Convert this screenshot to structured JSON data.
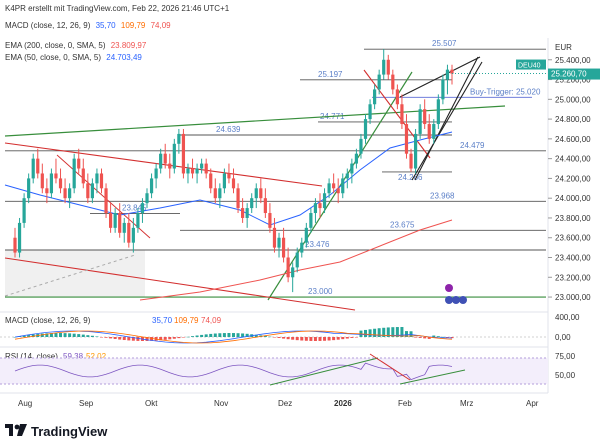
{
  "header": {
    "published_by": "K4PR erstellt mit TradingView.com, Feb 22, 2026 21:46 UTC+1"
  },
  "legends": {
    "macd_top": {
      "label": "MACD (close, 12, 26, 9)",
      "values": [
        "35,70",
        "109,79",
        "74,09"
      ],
      "colors": [
        "#2962ff",
        "#ff6d00",
        "#ef5350"
      ]
    },
    "ema200": {
      "label": "EMA (200, close, 0, SMA, 5)",
      "value": "23.809,97",
      "color": "#ef5350"
    },
    "ema50": {
      "label": "EMA (50, close, 0, SMA, 5)",
      "value": "24.703,49",
      "color": "#2962ff"
    },
    "macd_pane": {
      "label": "MACD (close, 12, 26, 9)",
      "values": [
        "35,70",
        "109,79",
        "74,09"
      ]
    },
    "rsi_pane": {
      "label": "RSI (14, close)",
      "values": [
        "59,38",
        "52,02"
      ]
    }
  },
  "chart_data": {
    "type": "candlestick",
    "symbol": "DEU40",
    "currency": "EUR",
    "last_price": "25.260,70",
    "x_ticks": [
      "Aug",
      "Sep",
      "Okt",
      "Nov",
      "Dez",
      "2026",
      "Feb",
      "Mrz",
      "Apr"
    ],
    "y_ticks": [
      "25.400,00",
      "25.200,00",
      "25.000,00",
      "24.800,00",
      "24.600,00",
      "24.400,00",
      "24.200,00",
      "24.000,00",
      "23.800,00",
      "23.600,00",
      "23.400,00",
      "23.200,00",
      "23.000,00"
    ],
    "ylim": [
      22950,
      25600
    ],
    "level_labels": [
      {
        "text": "25.507",
        "value": 25507
      },
      {
        "text": "25.197",
        "value": 25197
      },
      {
        "text": "Buy-Trigger: 25.020",
        "value": 25020
      },
      {
        "text": "24.771",
        "value": 24771
      },
      {
        "text": "24.639",
        "value": 24639
      },
      {
        "text": "24.479",
        "value": 24479
      },
      {
        "text": "24.266",
        "value": 24266
      },
      {
        "text": "23.968",
        "value": 23968
      },
      {
        "text": "23.845",
        "value": 23845
      },
      {
        "text": "23.675",
        "value": 23675
      },
      {
        "text": "23.476",
        "value": 23476
      },
      {
        "text": "23.000",
        "value": 23000
      }
    ],
    "candles": [
      [
        23600,
        23700,
        23400,
        23450
      ],
      [
        23450,
        23800,
        23400,
        23750
      ],
      [
        23750,
        24050,
        23700,
        24000
      ],
      [
        24000,
        24250,
        23950,
        24200
      ],
      [
        24200,
        24450,
        24150,
        24400
      ],
      [
        24400,
        24500,
        24200,
        24250
      ],
      [
        24250,
        24350,
        24050,
        24100
      ],
      [
        24100,
        24200,
        23950,
        24050
      ],
      [
        24050,
        24300,
        24000,
        24250
      ],
      [
        24250,
        24400,
        24150,
        24200
      ],
      [
        24200,
        24300,
        24050,
        24100
      ],
      [
        24100,
        24200,
        23950,
        24000
      ],
      [
        24000,
        24150,
        23900,
        24100
      ],
      [
        24100,
        24450,
        24050,
        24400
      ],
      [
        24400,
        24500,
        24250,
        24300
      ],
      [
        24300,
        24400,
        24100,
        24150
      ],
      [
        24150,
        24250,
        23950,
        24000
      ],
      [
        24000,
        24200,
        23950,
        24150
      ],
      [
        24150,
        24300,
        24050,
        24250
      ],
      [
        24250,
        24300,
        24050,
        24100
      ],
      [
        24100,
        24150,
        23800,
        23850
      ],
      [
        23850,
        23950,
        23650,
        23700
      ],
      [
        23700,
        23900,
        23650,
        23850
      ],
      [
        23850,
        23950,
        23600,
        23650
      ],
      [
        23650,
        23800,
        23550,
        23750
      ],
      [
        23750,
        23850,
        23500,
        23550
      ],
      [
        23550,
        23800,
        23450,
        23700
      ],
      [
        23700,
        23900,
        23650,
        23850
      ],
      [
        23850,
        24000,
        23750,
        23950
      ],
      [
        23950,
        24100,
        23900,
        24050
      ],
      [
        24050,
        24250,
        24000,
        24200
      ],
      [
        24200,
        24350,
        24100,
        24300
      ],
      [
        24300,
        24500,
        24250,
        24450
      ],
      [
        24450,
        24550,
        24300,
        24350
      ],
      [
        24350,
        24450,
        24200,
        24300
      ],
      [
        24300,
        24600,
        24250,
        24550
      ],
      [
        24550,
        24700,
        24450,
        24650
      ],
      [
        24650,
        24700,
        24200,
        24250
      ],
      [
        24250,
        24350,
        24150,
        24300
      ],
      [
        24300,
        24400,
        24200,
        24250
      ],
      [
        24250,
        24350,
        24150,
        24300
      ],
      [
        24300,
        24400,
        24250,
        24350
      ],
      [
        24350,
        24400,
        24200,
        24250
      ],
      [
        24250,
        24300,
        24050,
        24100
      ],
      [
        24100,
        24200,
        23950,
        24000
      ],
      [
        24000,
        24150,
        23900,
        24100
      ],
      [
        24100,
        24300,
        24050,
        24250
      ],
      [
        24250,
        24350,
        24150,
        24200
      ],
      [
        24200,
        24300,
        24050,
        24100
      ],
      [
        24100,
        24150,
        23850,
        23900
      ],
      [
        23900,
        24000,
        23750,
        23800
      ],
      [
        23800,
        23950,
        23700,
        23900
      ],
      [
        23900,
        24050,
        23850,
        24000
      ],
      [
        24000,
        24150,
        23900,
        24100
      ],
      [
        24100,
        24200,
        23950,
        24000
      ],
      [
        24000,
        24100,
        23800,
        23850
      ],
      [
        23850,
        23950,
        23650,
        23700
      ],
      [
        23700,
        23800,
        23450,
        23500
      ],
      [
        23500,
        23650,
        23400,
        23600
      ],
      [
        23600,
        23700,
        23350,
        23400
      ],
      [
        23400,
        23500,
        23150,
        23200
      ],
      [
        23200,
        23350,
        23050,
        23300
      ],
      [
        23300,
        23500,
        23250,
        23450
      ],
      [
        23450,
        23600,
        23400,
        23550
      ],
      [
        23550,
        23750,
        23500,
        23700
      ],
      [
        23700,
        23900,
        23650,
        23850
      ],
      [
        23850,
        24000,
        23750,
        23950
      ],
      [
        23950,
        24050,
        23800,
        23900
      ],
      [
        23900,
        24100,
        23850,
        24050
      ],
      [
        24050,
        24200,
        24000,
        24150
      ],
      [
        24150,
        24250,
        24050,
        24100
      ],
      [
        24100,
        24200,
        23950,
        24050
      ],
      [
        24050,
        24250,
        24000,
        24200
      ],
      [
        24200,
        24300,
        24100,
        24250
      ],
      [
        24250,
        24400,
        24150,
        24350
      ],
      [
        24350,
        24500,
        24300,
        24450
      ],
      [
        24450,
        24650,
        24400,
        24600
      ],
      [
        24600,
        24850,
        24550,
        24800
      ],
      [
        24800,
        25000,
        24750,
        24950
      ],
      [
        24950,
        25150,
        24900,
        25100
      ],
      [
        25100,
        25300,
        25050,
        25250
      ],
      [
        25250,
        25507,
        25200,
        25400
      ],
      [
        25400,
        25450,
        25200,
        25250
      ],
      [
        25250,
        25300,
        25050,
        25100
      ],
      [
        25100,
        25150,
        24900,
        24950
      ],
      [
        24950,
        25050,
        24700,
        24750
      ],
      [
        24750,
        24850,
        24400,
        24450
      ],
      [
        24450,
        24500,
        24266,
        24300
      ],
      [
        24300,
        24700,
        24250,
        24650
      ],
      [
        24650,
        24950,
        24600,
        24900
      ],
      [
        24900,
        25000,
        24700,
        24750
      ],
      [
        24750,
        24850,
        24550,
        24600
      ],
      [
        24600,
        24800,
        24550,
        24750
      ],
      [
        24750,
        25050,
        24700,
        25000
      ],
      [
        25000,
        25250,
        24950,
        25200
      ],
      [
        25200,
        25350,
        25050,
        25300
      ],
      [
        25300,
        25350,
        25150,
        25260
      ]
    ],
    "overlays": {
      "ema200_name": "EMA 200",
      "ema50_name": "EMA 50"
    },
    "macd": {
      "ylim": [
        -200,
        450
      ],
      "y_ticks": [
        "400,00",
        "0,00"
      ]
    },
    "rsi": {
      "ylim": [
        25,
        85
      ],
      "y_ticks": [
        "75,00",
        "50,00"
      ]
    }
  }
}
